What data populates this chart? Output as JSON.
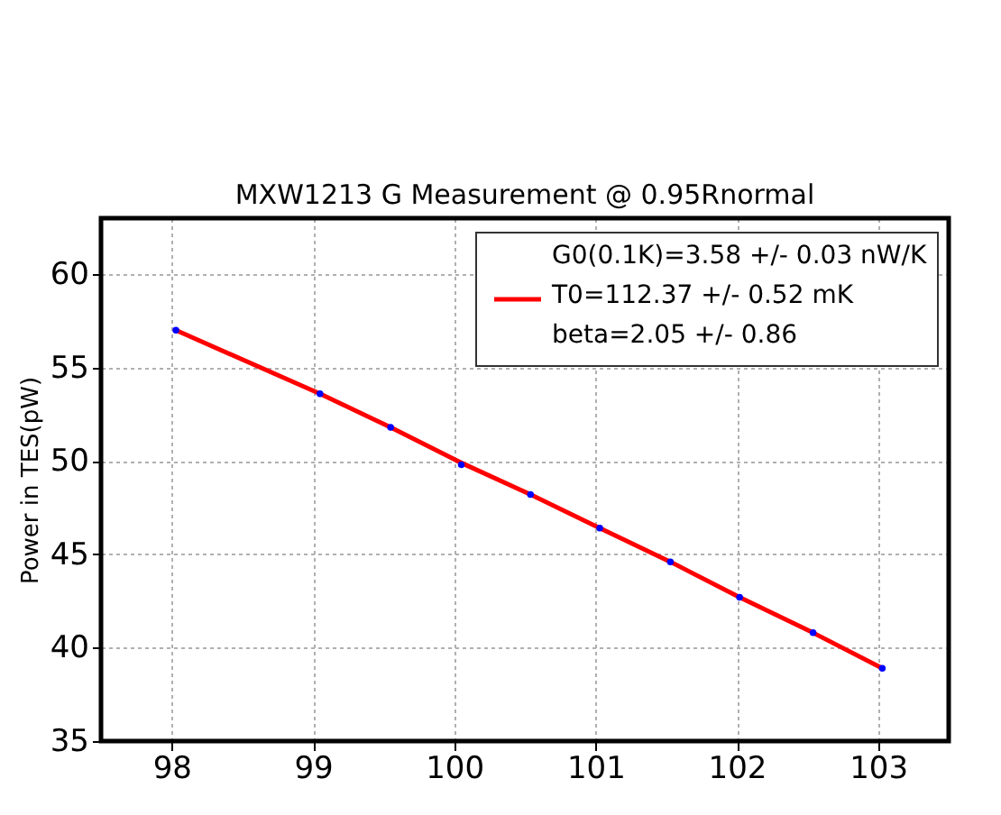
{
  "chart_data": {
    "type": "line",
    "title": "MXW1213 G Measurement @ 0.95Rnormal",
    "ylabel": "Power in TES(pW)",
    "xlim": [
      97.5,
      103.5
    ],
    "xticks": [
      98,
      99,
      100,
      101,
      102,
      103
    ],
    "ylim": [
      35,
      63
    ],
    "yticks": [
      35,
      40,
      45,
      50,
      55,
      60
    ],
    "grid": true,
    "legend": "top right",
    "series": [
      {
        "name": "G0(0.1K)=3.58 +/- 0.03 nW/K\nT0=112.37 +/- 0.52 mK\nbeta=2.05 +/- 0.86",
        "color": "#ff0000",
        "line_style": "solid",
        "marker": "none",
        "x": [
          98.03,
          99.05,
          99.55,
          100.05,
          100.54,
          101.03,
          101.53,
          102.02,
          102.54,
          103.03
        ],
        "values": [
          57.0,
          53.6,
          51.8,
          49.9,
          48.2,
          46.4,
          44.6,
          42.7,
          40.8,
          38.9
        ]
      },
      {
        "type": "scatter",
        "color": "#0000ff",
        "marker": "circle",
        "x": [
          98.03,
          99.05,
          99.55,
          100.05,
          100.54,
          101.03,
          101.53,
          102.02,
          102.54,
          103.03
        ],
        "values": [
          57.0,
          53.6,
          51.8,
          49.8,
          48.2,
          46.4,
          44.6,
          42.7,
          40.8,
          38.9
        ]
      }
    ]
  }
}
